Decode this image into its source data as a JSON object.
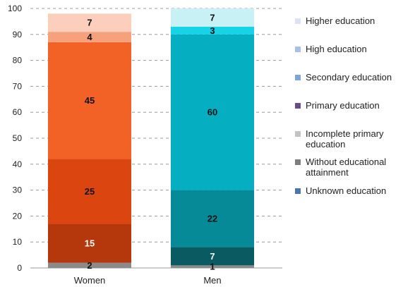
{
  "chart_data": {
    "type": "bar",
    "stacked": true,
    "categories": [
      "Women",
      "Men"
    ],
    "ylim": [
      0,
      100
    ],
    "yticks": [
      0,
      10,
      20,
      30,
      40,
      50,
      60,
      70,
      80,
      90,
      100
    ],
    "grid": true,
    "legend_position": "right",
    "series": [
      {
        "name": "Unknown education",
        "values": [
          null,
          null
        ]
      },
      {
        "name": "Without educational attainment",
        "values": [
          2,
          1
        ]
      },
      {
        "name": "Incomplete primary education",
        "values": [
          null,
          null
        ]
      },
      {
        "name": "Primary education",
        "values": [
          15,
          7
        ]
      },
      {
        "name": "Secondary education",
        "values": [
          25,
          22
        ]
      },
      {
        "name": "High education",
        "values": [
          45,
          60
        ]
      },
      {
        "name": "Higher education",
        "values": [
          4,
          3
        ]
      },
      {
        "name": "",
        "values": [
          7,
          7
        ]
      }
    ],
    "segment_colors": {
      "Women": [
        "#8a8a8a",
        "#b5380d",
        "#db4510",
        "#f26125",
        "#f7a07c",
        "#fbcfbb"
      ],
      "Men": [
        "#8a8a8a",
        "#0a5a62",
        "#078a98",
        "#06aec2",
        "#18d3e6",
        "#c8f1f6"
      ]
    },
    "label_colors": {
      "Women": [
        "#111111",
        "#ffffff",
        "#111111",
        "#111111",
        "#111111",
        "#111111"
      ],
      "Men": [
        "#111111",
        "#ffffff",
        "#111111",
        "#111111",
        "#111111",
        "#111111"
      ]
    }
  },
  "legend": {
    "items": [
      {
        "label": "Higher education",
        "color": "#dbe3f4"
      },
      {
        "label": "High education",
        "color": "#a9bfe3"
      },
      {
        "label": "Secondary education",
        "color": "#7ea4d9"
      },
      {
        "label": "Primary education",
        "color": "#6a4c86"
      },
      {
        "label": "Incomplete primary education",
        "color": "#c4c4c4"
      },
      {
        "label": "Without educational attainment",
        "color": "#7d7d7d"
      },
      {
        "label": "Unknown education",
        "color": "#4a76ad"
      }
    ]
  }
}
